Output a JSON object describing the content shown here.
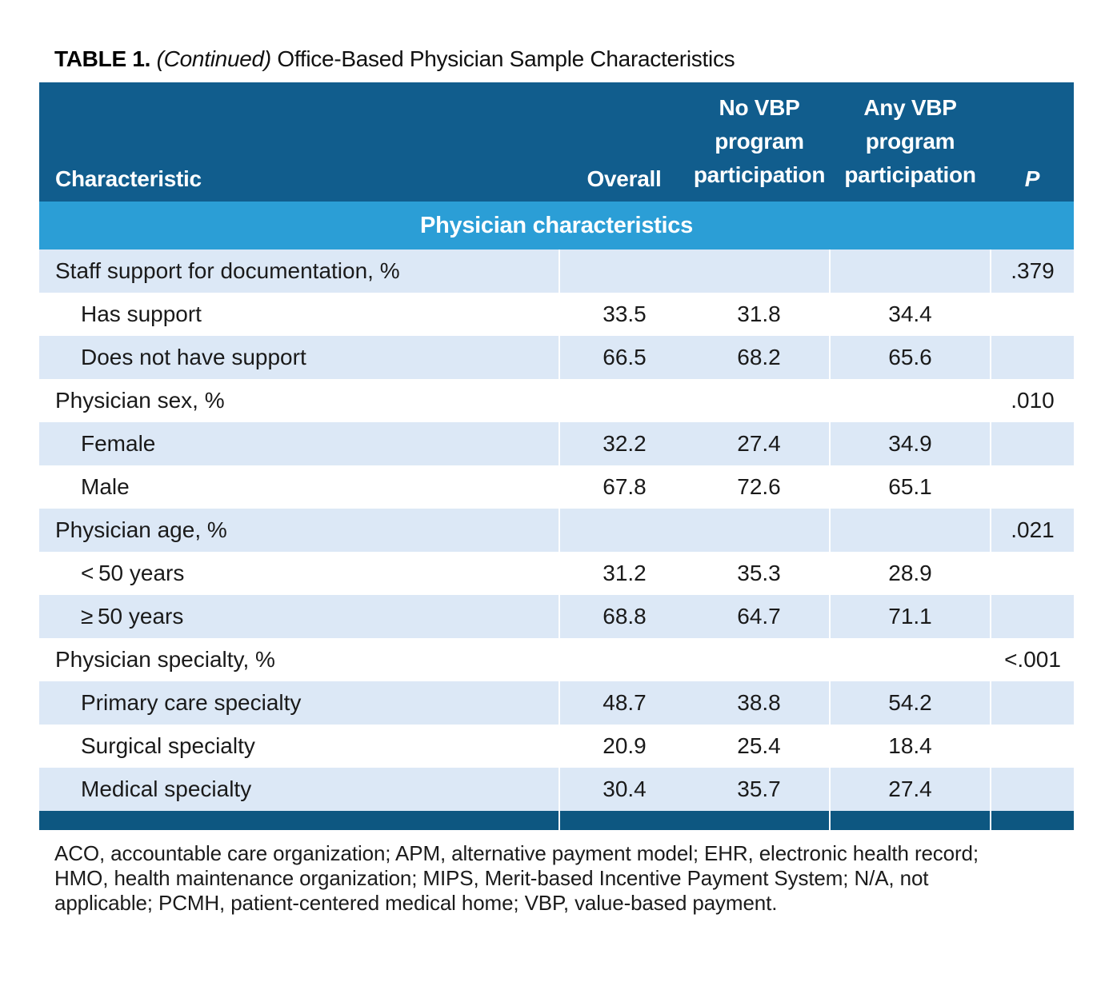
{
  "title": {
    "label": "TABLE 1.",
    "continued": "(Continued)",
    "rest": "Office-Based Physician Sample Characteristics"
  },
  "table": {
    "colors": {
      "header_navy": "#115d8d",
      "section_band_blue": "#2b9ed6",
      "row_shaded_blue": "#dce8f6",
      "bottom_rule_navy": "#0d5781"
    },
    "header": {
      "characteristic": "Characteristic",
      "overall": "Overall",
      "no_vbp_lines": [
        "No VBP",
        "program",
        "participation"
      ],
      "any_vbp_lines": [
        "Any VBP",
        "program",
        "participation"
      ],
      "p": "P"
    },
    "section_header": "Physician characteristics",
    "rows": [
      {
        "label": "Staff support for documentation, %",
        "indent": false,
        "overall": "",
        "no_vbp": "",
        "any_vbp": "",
        "p": ".379"
      },
      {
        "label": "Has support",
        "indent": true,
        "overall": "33.5",
        "no_vbp": "31.8",
        "any_vbp": "34.4",
        "p": ""
      },
      {
        "label": "Does not have support",
        "indent": true,
        "overall": "66.5",
        "no_vbp": "68.2",
        "any_vbp": "65.6",
        "p": ""
      },
      {
        "label": "Physician sex, %",
        "indent": false,
        "overall": "",
        "no_vbp": "",
        "any_vbp": "",
        "p": ".010"
      },
      {
        "label": "Female",
        "indent": true,
        "overall": "32.2",
        "no_vbp": "27.4",
        "any_vbp": "34.9",
        "p": ""
      },
      {
        "label": "Male",
        "indent": true,
        "overall": "67.8",
        "no_vbp": "72.6",
        "any_vbp": "65.1",
        "p": ""
      },
      {
        "label": "Physician age, %",
        "indent": false,
        "overall": "",
        "no_vbp": "",
        "any_vbp": "",
        "p": ".021"
      },
      {
        "label": "< 50 years",
        "indent": true,
        "overall": "31.2",
        "no_vbp": "35.3",
        "any_vbp": "28.9",
        "p": ""
      },
      {
        "label": "≥ 50 years",
        "indent": true,
        "overall": "68.8",
        "no_vbp": "64.7",
        "any_vbp": "71.1",
        "p": ""
      },
      {
        "label": "Physician specialty, %",
        "indent": false,
        "overall": "",
        "no_vbp": "",
        "any_vbp": "",
        "p": "<.001"
      },
      {
        "label": "Primary care specialty",
        "indent": true,
        "overall": "48.7",
        "no_vbp": "38.8",
        "any_vbp": "54.2",
        "p": ""
      },
      {
        "label": "Surgical specialty",
        "indent": true,
        "overall": "20.9",
        "no_vbp": "25.4",
        "any_vbp": "18.4",
        "p": ""
      },
      {
        "label": "Medical specialty",
        "indent": true,
        "overall": "30.4",
        "no_vbp": "35.7",
        "any_vbp": "27.4",
        "p": ""
      }
    ]
  },
  "chart_data": {
    "type": "table",
    "title": "TABLE 1. (Continued) Office-Based Physician Sample Characteristics",
    "columns": [
      "Characteristic",
      "Overall",
      "No VBP program participation",
      "Any VBP program participation",
      "P"
    ],
    "section": "Physician characteristics",
    "rows": [
      [
        "Staff support for documentation, %",
        null,
        null,
        null,
        ".379"
      ],
      [
        "Has support",
        33.5,
        31.8,
        34.4,
        null
      ],
      [
        "Does not have support",
        66.5,
        68.2,
        65.6,
        null
      ],
      [
        "Physician sex, %",
        null,
        null,
        null,
        ".010"
      ],
      [
        "Female",
        32.2,
        27.4,
        34.9,
        null
      ],
      [
        "Male",
        67.8,
        72.6,
        65.1,
        null
      ],
      [
        "Physician age, %",
        null,
        null,
        null,
        ".021"
      ],
      [
        "<50 years",
        31.2,
        35.3,
        28.9,
        null
      ],
      [
        "≥50 years",
        68.8,
        64.7,
        71.1,
        null
      ],
      [
        "Physician specialty, %",
        null,
        null,
        null,
        "<.001"
      ],
      [
        "Primary care specialty",
        48.7,
        38.8,
        54.2,
        null
      ],
      [
        "Surgical specialty",
        20.9,
        25.4,
        18.4,
        null
      ],
      [
        "Medical specialty",
        30.4,
        35.7,
        27.4,
        null
      ]
    ]
  },
  "footnote": {
    "lines": [
      "ACO, accountable care organization; APM, alternative payment model; EHR, electronic health record;",
      "HMO, health maintenance organization; MIPS, Merit-based Incentive Payment System; N/A, not",
      "applicable; PCMH, patient-centered medical home; VBP, value-based payment."
    ]
  }
}
